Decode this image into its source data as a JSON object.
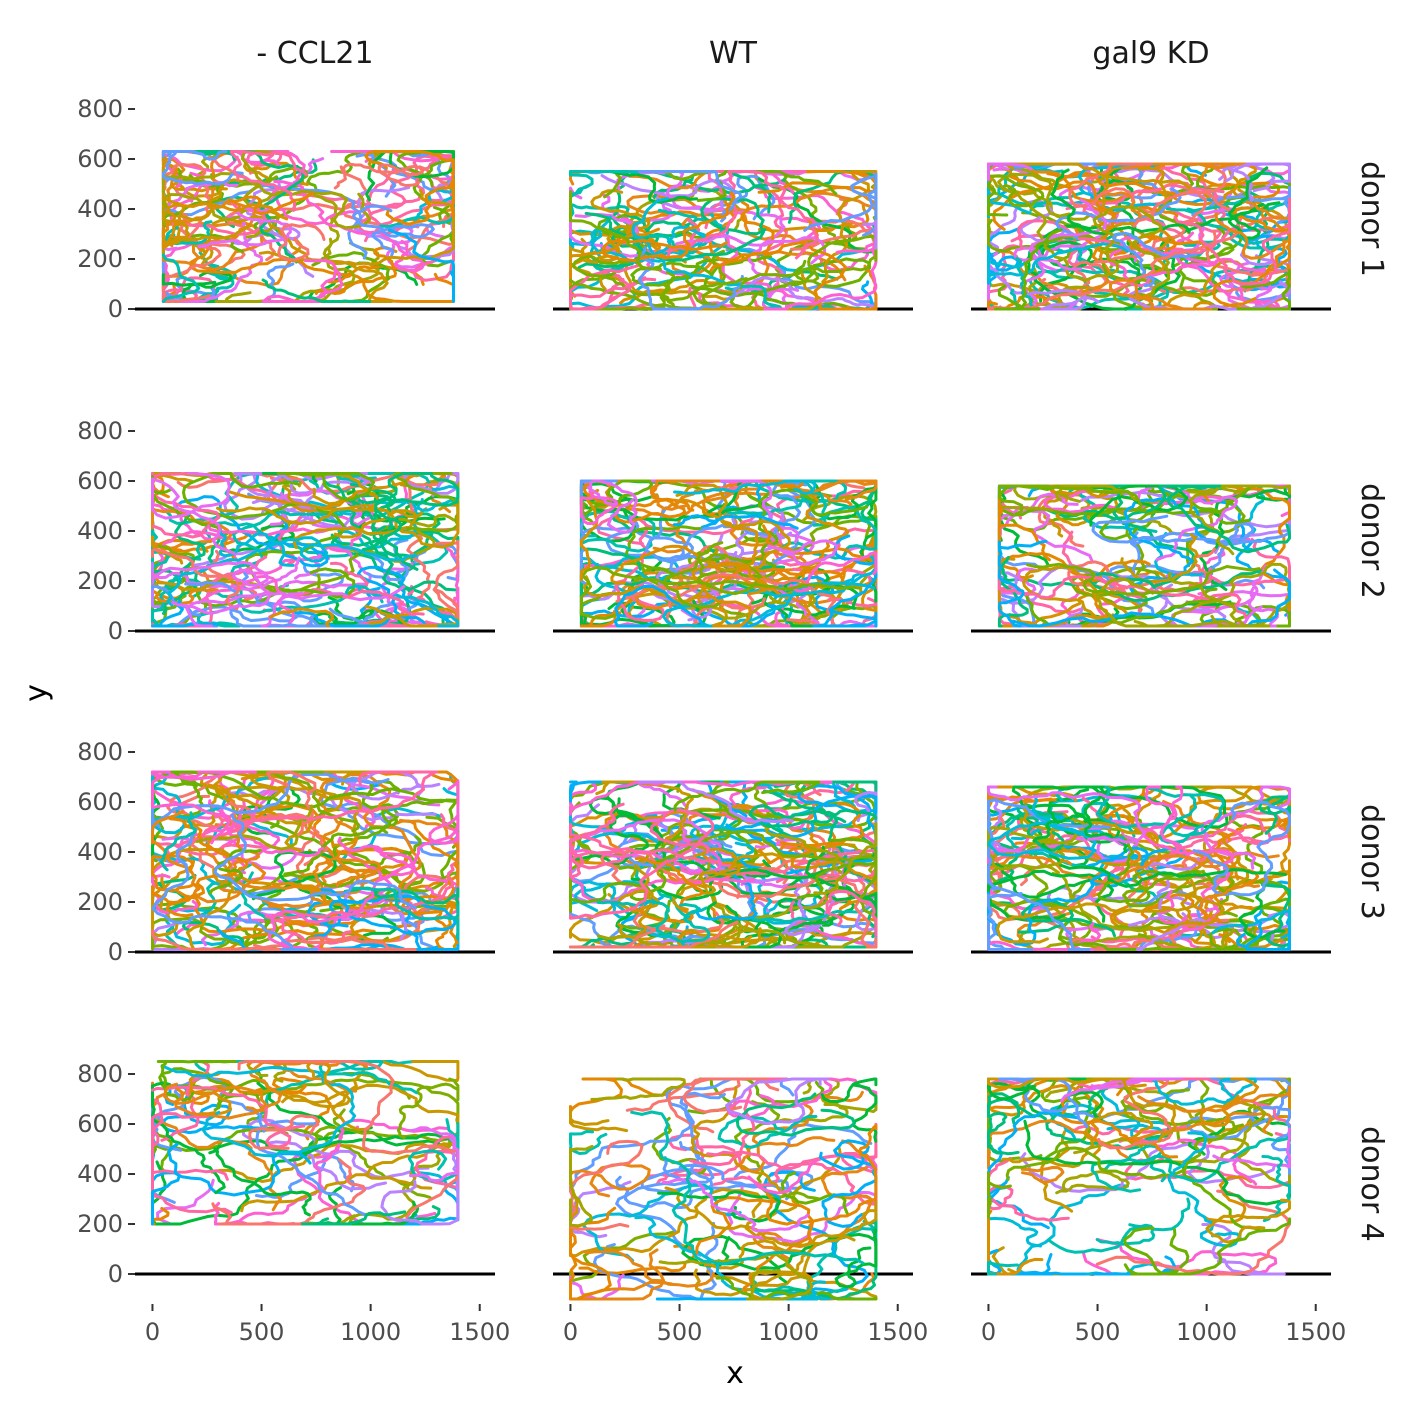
{
  "chart_data": {
    "type": "line",
    "facet_columns": [
      "- CCL21",
      "WT",
      "gal9 KD"
    ],
    "facet_rows": [
      "donor 1",
      "donor 2",
      "donor 3",
      "donor 4"
    ],
    "xlabel": "x",
    "ylabel": "y",
    "xlim": [
      -80,
      1570
    ],
    "ylim": [
      -120,
      900
    ],
    "x_ticks": [
      0,
      500,
      1000,
      1500
    ],
    "y_ticks": [
      0,
      200,
      400,
      600,
      800
    ],
    "grid": false,
    "legend": "none",
    "baseline_y": 0,
    "series_colors": [
      "#F8766D",
      "#E58700",
      "#C99800",
      "#A3A500",
      "#6BB100",
      "#00BA38",
      "#00BF7D",
      "#00C0AF",
      "#00BCD8",
      "#00B0F6",
      "#619CFF",
      "#B983FF",
      "#E76BF3",
      "#FD61D1",
      "#FF67A4",
      "#D89000",
      "#E68613",
      "#7CAE00"
    ],
    "panels": [
      {
        "column": "- CCL21",
        "row": "donor 1",
        "n_tracks": 90,
        "x_range": [
          50,
          1380
        ],
        "y_range": [
          30,
          630
        ]
      },
      {
        "column": "WT",
        "row": "donor 1",
        "n_tracks": 90,
        "x_range": [
          0,
          1400
        ],
        "y_range": [
          0,
          550
        ]
      },
      {
        "column": "gal9 KD",
        "row": "donor 1",
        "n_tracks": 110,
        "x_range": [
          0,
          1380
        ],
        "y_range": [
          0,
          580
        ]
      },
      {
        "column": "- CCL21",
        "row": "donor 2",
        "n_tracks": 110,
        "x_range": [
          0,
          1400
        ],
        "y_range": [
          20,
          630
        ]
      },
      {
        "column": "WT",
        "row": "donor 2",
        "n_tracks": 100,
        "x_range": [
          50,
          1400
        ],
        "y_range": [
          20,
          600
        ]
      },
      {
        "column": "gal9 KD",
        "row": "donor 2",
        "n_tracks": 80,
        "x_range": [
          50,
          1380
        ],
        "y_range": [
          20,
          580
        ]
      },
      {
        "column": "- CCL21",
        "row": "donor 3",
        "n_tracks": 110,
        "x_range": [
          0,
          1400
        ],
        "y_range": [
          10,
          720
        ]
      },
      {
        "column": "WT",
        "row": "donor 3",
        "n_tracks": 120,
        "x_range": [
          0,
          1400
        ],
        "y_range": [
          20,
          680
        ]
      },
      {
        "column": "gal9 KD",
        "row": "donor 3",
        "n_tracks": 110,
        "x_range": [
          0,
          1380
        ],
        "y_range": [
          10,
          660
        ]
      },
      {
        "column": "- CCL21",
        "row": "donor 4",
        "n_tracks": 60,
        "x_range": [
          0,
          1400
        ],
        "y_range": [
          200,
          850
        ]
      },
      {
        "column": "WT",
        "row": "donor 4",
        "n_tracks": 70,
        "x_range": [
          0,
          1400
        ],
        "y_range": [
          -100,
          780
        ]
      },
      {
        "column": "gal9 KD",
        "row": "donor 4",
        "n_tracks": 70,
        "x_range": [
          0,
          1380
        ],
        "y_range": [
          0,
          780
        ]
      }
    ]
  }
}
